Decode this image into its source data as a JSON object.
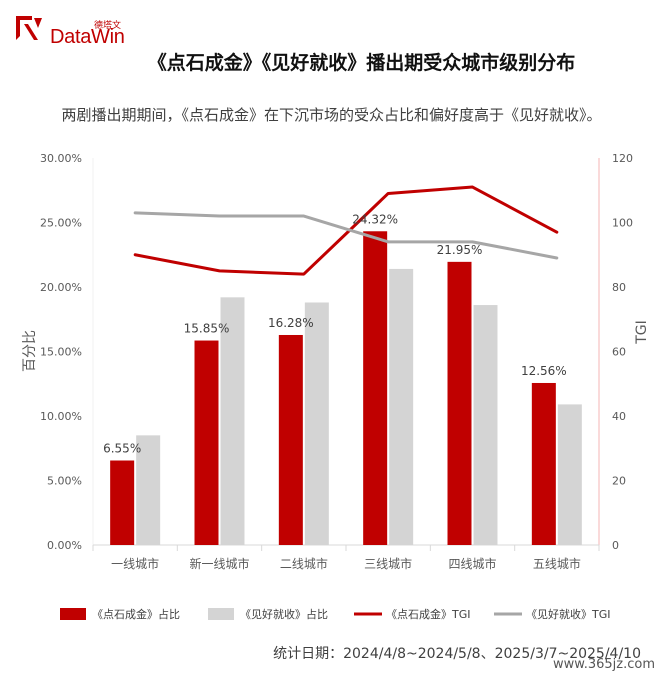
{
  "header": {
    "logo_cn": "德塔文",
    "logo_en": "DataWin",
    "title": "《点石成金》《见好就收》播出期受众城市级别分布",
    "subtitle": "两剧播出期期间，《点石成金》在下沉市场的受众占比和偏好度高于《见好就收》。"
  },
  "footer": {
    "date_note": "统计日期：2024/4/8~2024/5/8、2025/3/7~2025/4/10",
    "watermark": "www.365jz.com"
  },
  "colors": {
    "series_a_bar": "#c00000",
    "series_b_bar": "#d4d4d4",
    "series_a_line": "#c00000",
    "series_b_line": "#a6a6a6",
    "axis_right": "#f4b6b6"
  },
  "chart_data": {
    "type": "bar",
    "categories": [
      "一线城市",
      "新一线城市",
      "二线城市",
      "三线城市",
      "四线城市",
      "五线城市"
    ],
    "ylabel": "百分比",
    "y2label": "TGI",
    "ylim": [
      0,
      30
    ],
    "y2lim": [
      0,
      120
    ],
    "yticks": [
      "0.00%",
      "5.00%",
      "10.00%",
      "15.00%",
      "20.00%",
      "25.00%",
      "30.00%"
    ],
    "y2ticks": [
      "0",
      "20",
      "40",
      "60",
      "80",
      "100",
      "120"
    ],
    "grid": false,
    "legend_position": "bottom",
    "bar_series": [
      {
        "name": "《点石成金》占比",
        "values": [
          6.55,
          15.85,
          16.28,
          24.32,
          21.95,
          12.56
        ],
        "labels": [
          "6.55%",
          "15.85%",
          "16.28%",
          "24.32%",
          "21.95%",
          "12.56%"
        ]
      },
      {
        "name": "《见好就收》占比",
        "values": [
          8.5,
          19.2,
          18.8,
          21.4,
          18.6,
          10.9
        ]
      }
    ],
    "line_series": [
      {
        "name": "《点石成金》TGI",
        "values": [
          90,
          85,
          84,
          109,
          111,
          97
        ]
      },
      {
        "name": "《见好就收》TGI",
        "values": [
          103,
          102,
          102,
          94,
          94,
          89
        ]
      }
    ]
  }
}
